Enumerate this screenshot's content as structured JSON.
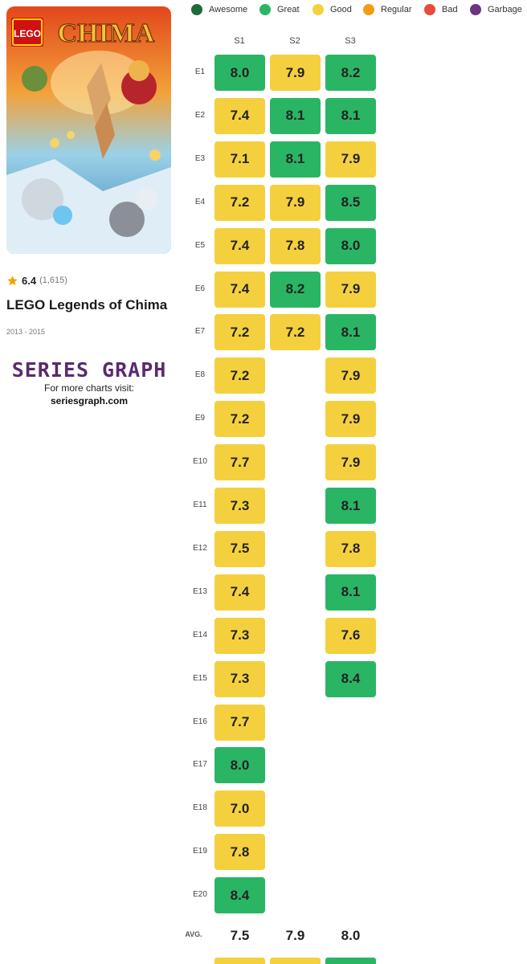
{
  "show": {
    "logo_text": "LEGO",
    "poster_title": "CHIMA",
    "title": "LEGO Legends of Chima",
    "rating": "6.4",
    "votes": "(1,615)",
    "years": "2013 - 2015"
  },
  "branding": {
    "name": "SERIES GRAPH",
    "tagline": "For more charts visit:",
    "url": "seriesgraph.com"
  },
  "colors": {
    "awesome": "#1e6b3a",
    "great": "#2ab564",
    "good": "#f4d03f",
    "regular": "#f39c12",
    "bad": "#e74c3c",
    "garbage": "#6c3483",
    "star": "#f4a300"
  },
  "chart_data": {
    "type": "heatmap",
    "legend": [
      {
        "label": "Awesome",
        "color": "#1e6b3a"
      },
      {
        "label": "Great",
        "color": "#2ab564"
      },
      {
        "label": "Good",
        "color": "#f4d03f"
      },
      {
        "label": "Regular",
        "color": "#f39c12"
      },
      {
        "label": "Bad",
        "color": "#e74c3c"
      },
      {
        "label": "Garbage",
        "color": "#6c3483"
      }
    ],
    "columns": [
      "S1",
      "S2",
      "S3"
    ],
    "rows": [
      "E1",
      "E2",
      "E3",
      "E4",
      "E5",
      "E6",
      "E7",
      "E8",
      "E9",
      "E10",
      "E11",
      "E12",
      "E13",
      "E14",
      "E15",
      "E16",
      "E17",
      "E18",
      "E19",
      "E20"
    ],
    "values": [
      [
        "8.0",
        "7.4",
        "7.1",
        "7.2",
        "7.4",
        "7.4",
        "7.2",
        "7.2",
        "7.2",
        "7.7",
        "7.3",
        "7.5",
        "7.4",
        "7.3",
        "7.3",
        "7.7",
        "8.0",
        "7.0",
        "7.8",
        "8.4"
      ],
      [
        "7.9",
        "8.1",
        "8.1",
        "7.9",
        "7.8",
        "8.2",
        "7.2"
      ],
      [
        "8.2",
        "8.1",
        "7.9",
        "8.5",
        "8.0",
        "7.9",
        "8.1",
        "7.9",
        "7.9",
        "7.9",
        "8.1",
        "7.8",
        "8.1",
        "7.6",
        "8.4"
      ]
    ],
    "avg_label": "AVG.",
    "averages": [
      "7.5",
      "7.9",
      "8.0"
    ]
  }
}
